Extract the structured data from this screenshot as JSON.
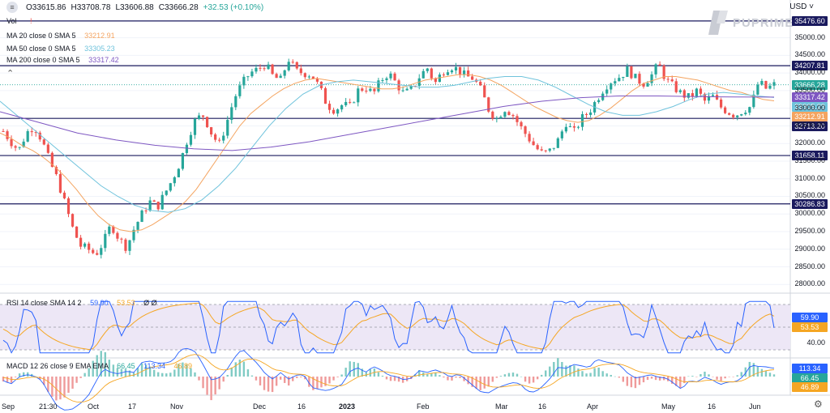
{
  "ohlc": {
    "open": "O33615.86",
    "high": "H33708.78",
    "low": "L33606.88",
    "close": "C33666.28",
    "change": "+32.53 (+0.10%)"
  },
  "currency": "USD",
  "logo": {
    "text": "PUPRIME"
  },
  "legends": {
    "vol": "Vol",
    "ma20": {
      "label": "MA 20 close 0 SMA 5",
      "value": "33212.91"
    },
    "ma50": {
      "label": "MA 50 close 0 SMA 5",
      "value": "33305.23"
    },
    "ma200": {
      "label": "MA 200 close 0 SMA 5",
      "value": "33317.42"
    },
    "rsi": {
      "label": "RSI 14 close SMA 14 2",
      "value1": "59.90",
      "value2": "53.53",
      "extra": "Ø Ø"
    },
    "macd": {
      "label": "MACD 12 26 close 9 EMA EMA",
      "v1": "66.45",
      "v2": "113.34",
      "v3": "46.89"
    }
  },
  "colors": {
    "up": "#26a69a",
    "down": "#ef5350",
    "ma20": "#f4a460",
    "ma50": "#6fc3dc",
    "ma200": "#7e57c2",
    "hline": "#1a1a5e",
    "rsi": "#2962ff",
    "rsi_sma": "#f5a623",
    "rsi_band": "#ede7f6"
  },
  "chart_data": {
    "type": "candlestick",
    "price_axis": [
      "35000.00",
      "34500.00",
      "34000.00",
      "33500.00",
      "33000.00",
      "32500.00",
      "32000.00",
      "31500.00",
      "31000.00",
      "30500.00",
      "30000.00",
      "29500.00",
      "29000.00",
      "28500.00",
      "28000.00"
    ],
    "price_range": [
      27800,
      35750
    ],
    "time_axis": [
      "Sep",
      "21:30",
      "Oct",
      "17",
      "Nov",
      "Dec",
      "16",
      "2023",
      "Feb",
      "Mar",
      "16",
      "Apr",
      "May",
      "16",
      "Jun"
    ],
    "horizontal_lines": [
      35476.6,
      34207.81,
      32713.2,
      31658.11,
      30286.83
    ],
    "price_labels": [
      {
        "text": "35476.60",
        "value": 35476.6,
        "color": "#1a1a5e"
      },
      {
        "text": "34207.81",
        "value": 34207.81,
        "color": "#1a1a5e"
      },
      {
        "text": "33666.28",
        "value": 33666.28,
        "color": "#26a69a"
      },
      {
        "text": "33317.42",
        "value": 33317.42,
        "color": "#7e57c2"
      },
      {
        "text": "33305.23",
        "value": 33305.23,
        "color": "#6fc3dc"
      },
      {
        "text": "33212.91",
        "value": 33212.91,
        "color": "#f4a460"
      },
      {
        "text": "32713.20",
        "value": 32713.2,
        "color": "#1a1a5e"
      },
      {
        "text": "31658.11",
        "value": 31658.11,
        "color": "#1a1a5e"
      },
      {
        "text": "30286.83",
        "value": 30286.83,
        "color": "#1a1a5e"
      }
    ],
    "close_path": [
      32350,
      32050,
      31800,
      32300,
      32500,
      32100,
      31500,
      31000,
      30300,
      29600,
      29100,
      29000,
      28850,
      29200,
      29700,
      29300,
      29050,
      29600,
      30000,
      30350,
      30200,
      30600,
      31000,
      31500,
      32200,
      32700,
      32800,
      32300,
      31950,
      32600,
      33300,
      33700,
      34000,
      34100,
      34250,
      33900,
      33800,
      34400,
      34050,
      34000,
      33950,
      33600,
      33100,
      32950,
      33100,
      33050,
      33500,
      33600,
      33400,
      33800,
      34000,
      33700,
      33400,
      33550,
      33900,
      34150,
      33700,
      34050,
      34200,
      34100,
      33900,
      33850,
      33500,
      32950,
      32700,
      33000,
      32850,
      32500,
      32200,
      31900,
      31700,
      31800,
      32100,
      32600,
      32300,
      32700,
      32900,
      33250,
      33600,
      33800,
      33900,
      34100,
      33850,
      33700,
      33900,
      34250,
      33800,
      33600,
      33400,
      33300,
      33500,
      33200,
      33350,
      33050,
      32900,
      32800,
      32950,
      33050,
      33750,
      33550,
      33666
    ],
    "ma20": [
      32300,
      32150,
      31950,
      31800,
      31600,
      31350,
      31050,
      30700,
      30300,
      29950,
      29700,
      29550,
      29500,
      29550,
      29700,
      29900,
      30100,
      30350,
      30700,
      31150,
      31600,
      32050,
      32500,
      32850,
      33100,
      33350,
      33550,
      33700,
      33800,
      33850,
      33800,
      33750,
      33700,
      33650,
      33600,
      33550,
      33550,
      33600,
      33700,
      33800,
      33850,
      33900,
      33950,
      33950,
      33900,
      33800,
      33650,
      33450,
      33250,
      33050,
      32900,
      32750,
      32650,
      32600,
      32650,
      32800,
      33000,
      33250,
      33500,
      33700,
      33800,
      33900,
      33900,
      33850,
      33800,
      33700,
      33600,
      33500,
      33450,
      33350,
      33250,
      33212
    ],
    "ma50": [
      33200,
      32800,
      32400,
      32000,
      31600,
      31200,
      30800,
      30500,
      30250,
      30100,
      30050,
      30150,
      30400,
      30800,
      31300,
      31900,
      32500,
      33000,
      33400,
      33650,
      33750,
      33800,
      33750,
      33700,
      33650,
      33600,
      33600,
      33650,
      33750,
      33850,
      33900,
      33900,
      33800,
      33600,
      33350,
      33100,
      32900,
      32800,
      32800,
      32900,
      33050,
      33250,
      33400,
      33450,
      33400,
      33350,
      33305
    ],
    "ma200": [
      32900,
      32600,
      32300,
      32100,
      31950,
      31850,
      31800,
      31900,
      32050,
      32250,
      32450,
      32650,
      32850,
      33050,
      33200,
      33300,
      33350,
      33350,
      33330,
      33320,
      33317
    ]
  }
}
